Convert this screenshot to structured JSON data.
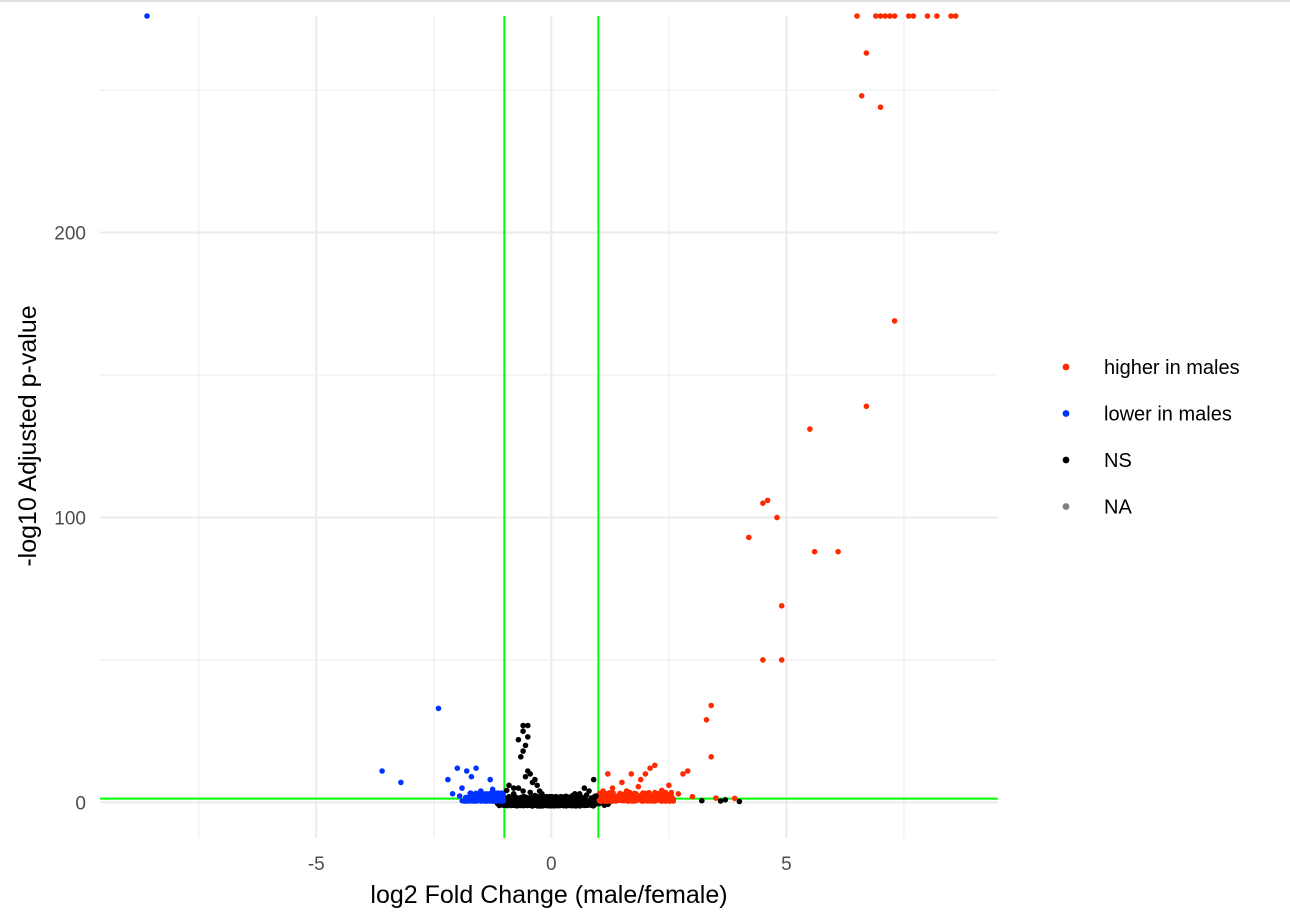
{
  "chart_data": {
    "type": "scatter",
    "title": "",
    "xlabel": "log2 Fold Change (male/female)",
    "ylabel": "-log10 Adjusted p-value",
    "xlim": [
      -9.6,
      9.5
    ],
    "ylim": [
      -12.5,
      276
    ],
    "x_ticks": [
      -5,
      0,
      5
    ],
    "x_tick_labels": [
      "-5",
      "0",
      "5"
    ],
    "x_minor_ticks": [
      -7.5,
      -2.5,
      2.5,
      7.5
    ],
    "y_ticks": [
      0,
      100,
      200
    ],
    "y_tick_labels": [
      "0",
      "100",
      "200"
    ],
    "y_minor_ticks": [
      50,
      150,
      250
    ],
    "grid": true,
    "legend_position": "right",
    "threshold_lines": {
      "x": [
        -1,
        1
      ],
      "y": [
        1.3
      ],
      "color": "#00ff00"
    },
    "colors": {
      "up": "#ff2a00",
      "down": "#0033ff",
      "ns": "#000000",
      "na": "#808080",
      "threshold": "#00ff00",
      "grid": "#ebebeb"
    },
    "legend": [
      {
        "key": "up",
        "label": "higher in males"
      },
      {
        "key": "down",
        "label": "lower in males"
      },
      {
        "key": "ns",
        "label": "NS"
      },
      {
        "key": "na",
        "label": "NA"
      }
    ],
    "series": [
      {
        "name": "higher in males",
        "key": "up",
        "points": [
          [
            6.5,
            276
          ],
          [
            6.9,
            276
          ],
          [
            7.0,
            276
          ],
          [
            7.1,
            276
          ],
          [
            7.2,
            276
          ],
          [
            7.3,
            276
          ],
          [
            7.6,
            276
          ],
          [
            7.7,
            276
          ],
          [
            8.0,
            276
          ],
          [
            8.2,
            276
          ],
          [
            8.5,
            276
          ],
          [
            8.6,
            276
          ],
          [
            6.7,
            263
          ],
          [
            6.6,
            248
          ],
          [
            7.0,
            244
          ],
          [
            7.3,
            169
          ],
          [
            6.7,
            139
          ],
          [
            5.5,
            131
          ],
          [
            4.6,
            106
          ],
          [
            4.5,
            105
          ],
          [
            4.8,
            100
          ],
          [
            4.2,
            93
          ],
          [
            5.6,
            88
          ],
          [
            6.1,
            88
          ],
          [
            4.9,
            69
          ],
          [
            4.5,
            50
          ],
          [
            4.9,
            50
          ],
          [
            3.4,
            34
          ],
          [
            3.3,
            29
          ],
          [
            3.4,
            16
          ],
          [
            2.9,
            11
          ],
          [
            2.8,
            10
          ],
          [
            2.2,
            13
          ],
          [
            2.1,
            12
          ],
          [
            2.0,
            10
          ],
          [
            1.7,
            10
          ],
          [
            1.2,
            10
          ],
          [
            1.9,
            8
          ],
          [
            1.5,
            7
          ],
          [
            2.5,
            6
          ],
          [
            1.3,
            5
          ],
          [
            1.1,
            4
          ],
          [
            1.6,
            4
          ],
          [
            1.8,
            3
          ],
          [
            2.2,
            2
          ],
          [
            2.7,
            3
          ],
          [
            3.0,
            2
          ],
          [
            1.4,
            2
          ],
          [
            1.2,
            1.5
          ],
          [
            2.0,
            1.6
          ],
          [
            1.05,
            1.8
          ],
          [
            1.9,
            2.2
          ],
          [
            2.4,
            1.9
          ],
          [
            1.7,
            1.7
          ],
          [
            1.3,
            3.4
          ],
          [
            1.15,
            2.6
          ],
          [
            1.55,
            2.4
          ],
          [
            1.85,
            5.5
          ],
          [
            2.35,
            4.2
          ],
          [
            3.5,
            1.5
          ],
          [
            3.9,
            1.4
          ]
        ]
      },
      {
        "name": "lower in males",
        "key": "down",
        "points": [
          [
            -8.6,
            276
          ],
          [
            -2.4,
            33
          ],
          [
            -3.6,
            11
          ],
          [
            -3.2,
            7
          ],
          [
            -2.0,
            12
          ],
          [
            -1.8,
            11
          ],
          [
            -1.6,
            12
          ],
          [
            -1.7,
            9
          ],
          [
            -2.2,
            8
          ],
          [
            -1.3,
            8
          ],
          [
            -1.9,
            5
          ],
          [
            -1.5,
            4
          ],
          [
            -1.2,
            3
          ],
          [
            -1.1,
            2
          ],
          [
            -1.4,
            2.5
          ],
          [
            -1.7,
            2
          ],
          [
            -2.1,
            3
          ],
          [
            -1.3,
            1.6
          ],
          [
            -1.8,
            1.5
          ],
          [
            -1.05,
            2.8
          ],
          [
            -1.25,
            4.6
          ],
          [
            -1.6,
            3.2
          ],
          [
            -1.95,
            2.2
          ]
        ]
      },
      {
        "name": "NS",
        "key": "ns",
        "points": [
          [
            -0.6,
            27
          ],
          [
            -0.5,
            27
          ],
          [
            -0.6,
            25
          ],
          [
            -0.5,
            23
          ],
          [
            -0.7,
            22
          ],
          [
            -0.55,
            20
          ],
          [
            -0.6,
            18
          ],
          [
            -0.65,
            16
          ],
          [
            -0.5,
            11
          ],
          [
            -0.45,
            10
          ],
          [
            -0.55,
            9
          ],
          [
            -0.35,
            8
          ],
          [
            -0.4,
            7
          ],
          [
            -0.3,
            6
          ],
          [
            -0.9,
            6
          ],
          [
            -0.8,
            5
          ],
          [
            -0.7,
            5
          ],
          [
            -0.25,
            4
          ],
          [
            -0.2,
            3
          ],
          [
            -0.1,
            2
          ],
          [
            0.0,
            2
          ],
          [
            0.1,
            2
          ],
          [
            0.2,
            2
          ],
          [
            0.3,
            2
          ],
          [
            0.5,
            3
          ],
          [
            0.6,
            3
          ],
          [
            0.8,
            4
          ],
          [
            0.9,
            8
          ],
          [
            0.7,
            5
          ],
          [
            0.4,
            1
          ],
          [
            -0.8,
            3
          ],
          [
            -0.9,
            2
          ],
          [
            -0.3,
            1
          ],
          [
            -0.2,
            0.5
          ],
          [
            0.15,
            0.5
          ],
          [
            0.5,
            0.5
          ],
          [
            -0.5,
            0.5
          ],
          [
            -0.7,
            1
          ],
          [
            0.85,
            1.5
          ],
          [
            -0.45,
            3.5
          ],
          [
            -0.15,
            1.2
          ],
          [
            0.25,
            1.1
          ],
          [
            0.65,
            1.8
          ],
          [
            -0.95,
            4.2
          ],
          [
            -0.35,
            2.4
          ],
          [
            0.45,
            2.4
          ],
          [
            -0.6,
            4
          ],
          [
            0.75,
            2.6
          ],
          [
            -0.05,
            0.6
          ],
          [
            0.95,
            2.2
          ],
          [
            3.2,
            0.6
          ],
          [
            3.7,
            0.9
          ],
          [
            3.6,
            0.5
          ],
          [
            4.0,
            0.3
          ]
        ]
      },
      {
        "name": "NA",
        "key": "na",
        "points": []
      }
    ]
  }
}
